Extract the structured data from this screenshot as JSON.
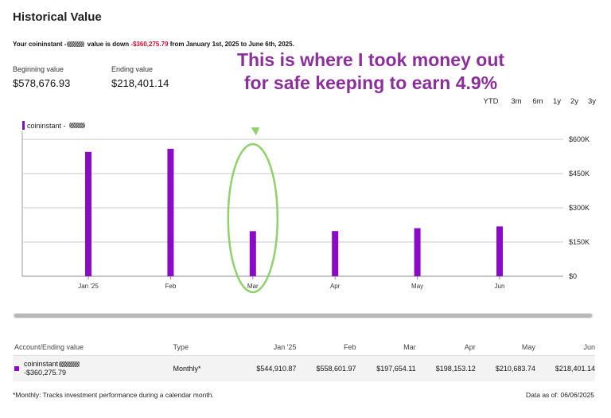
{
  "header": {
    "title": "Historical Value",
    "summary_prefix": "Your coininstant -",
    "summary_mid": " value is down ",
    "summary_change": "-$360,275.79",
    "summary_suffix": " from January 1st, 2025 to June 6th, 2025."
  },
  "stats": {
    "beginning_label": "Beginning value",
    "beginning_value": "$578,676.93",
    "ending_label": "Ending value",
    "ending_value": "$218,401.14"
  },
  "annotation": {
    "line1": "This is where I took money out",
    "line2": "for safe keeping to earn 4.9%",
    "color": "#8b2f9a",
    "highlight_color": "#8fd16a"
  },
  "range_tabs": [
    {
      "label": "YTD",
      "active": true
    },
    {
      "label": "3m",
      "active": false
    },
    {
      "label": "6m",
      "active": false
    },
    {
      "label": "1y",
      "active": false
    },
    {
      "label": "2y",
      "active": false
    },
    {
      "label": "3y",
      "active": false
    }
  ],
  "legend": {
    "label": "coininstant -"
  },
  "chart_data": {
    "type": "bar",
    "categories": [
      "Jan '25",
      "Feb",
      "Mar",
      "Apr",
      "May",
      "Jun"
    ],
    "series": [
      {
        "name": "coininstant -",
        "values": [
          544910.87,
          558601.97,
          197654.11,
          198153.12,
          210683.74,
          218401.14
        ]
      }
    ],
    "y_ticks": [
      "$0",
      "$150K",
      "$300K",
      "$450K",
      "$600K"
    ],
    "ylim": [
      0,
      600000
    ],
    "grid": true,
    "bar_color": "#8a0ac6"
  },
  "table": {
    "headers": [
      "Account/Ending value",
      "Type",
      "Jan '25",
      "Feb",
      "Mar",
      "Apr",
      "May",
      "Jun"
    ],
    "rows": [
      {
        "account": "coininstant",
        "ending_value": "-$360,275.79",
        "type": "Monthly*",
        "values": [
          "$544,910.87",
          "$558,601.97",
          "$197,654.11",
          "$198,153.12",
          "$210,683.74",
          "$218,401.14"
        ]
      }
    ]
  },
  "footer": {
    "note": "*Monthly: Tracks investment performance during a calendar month.",
    "as_of": "Data as of: 06/06/2025"
  }
}
